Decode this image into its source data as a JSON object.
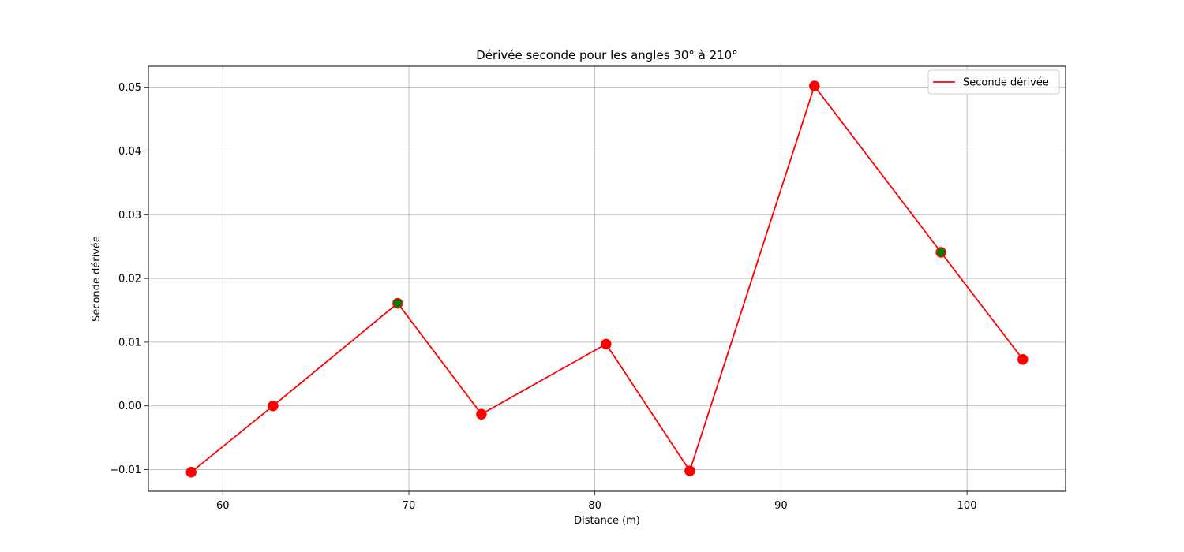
{
  "chart_data": {
    "type": "line",
    "title": "Dérivée seconde pour les angles 30° à 210°",
    "xlabel": "Distance (m)",
    "ylabel": "Seconde dérivée",
    "xlim": [
      56.0,
      105.3
    ],
    "ylim": [
      -0.0134,
      0.0533
    ],
    "x_ticks": [
      60,
      70,
      80,
      90,
      100
    ],
    "y_ticks": [
      -0.01,
      0.0,
      0.01,
      0.02,
      0.03,
      0.04,
      0.05
    ],
    "x_tick_labels": [
      "60",
      "70",
      "80",
      "90",
      "100"
    ],
    "y_tick_labels": [
      "−0.01",
      "0.00",
      "0.01",
      "0.02",
      "0.03",
      "0.04",
      "0.05"
    ],
    "grid": true,
    "legend_position": "top-right",
    "series": [
      {
        "name": "Seconde dérivée",
        "color": "#ff0000",
        "x": [
          58.3,
          62.7,
          69.4,
          73.9,
          80.6,
          85.1,
          91.8,
          98.6,
          103.0
        ],
        "y": [
          -0.0104,
          0.0,
          0.0161,
          -0.0013,
          0.0097,
          -0.0102,
          0.0502,
          0.0241,
          0.0073
        ]
      }
    ],
    "marker_colors": [
      "#ff0000",
      "#ff0000",
      "#008000",
      "#ff0000",
      "#ff0000",
      "#ff0000",
      "#ff0000",
      "#008000",
      "#ff0000"
    ],
    "marker_edge_color": "#ff0000"
  }
}
